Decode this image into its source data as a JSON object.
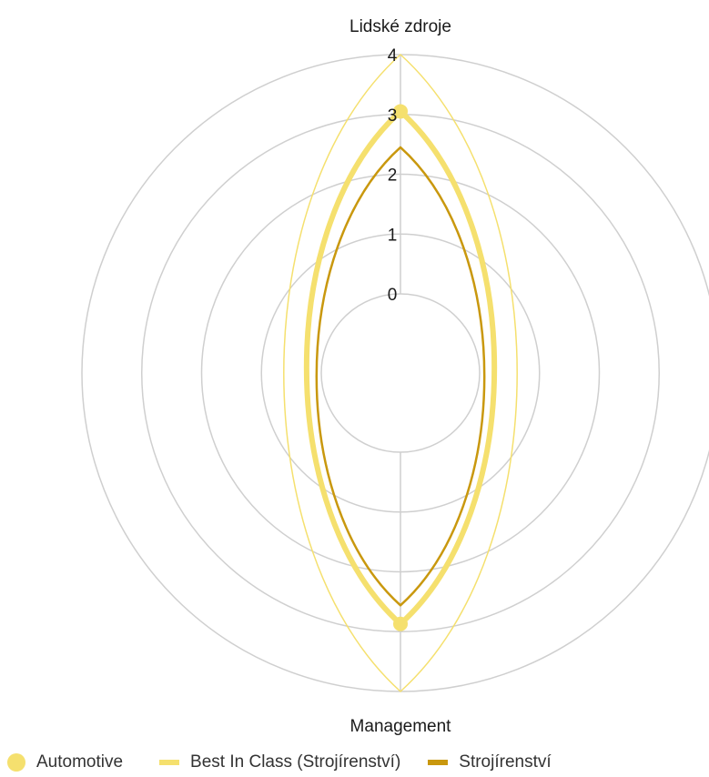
{
  "chart_data": {
    "type": "radar",
    "axes": [
      "Lidské zdroje",
      "Management"
    ],
    "ticks": [
      "0",
      "1",
      "2",
      "3",
      "4"
    ],
    "range": [
      0,
      4
    ],
    "series": [
      {
        "name": "Automotive",
        "values": [
          3.05,
          2.87
        ],
        "color": "#f5e06e",
        "marker": "dot",
        "line": "thick"
      },
      {
        "name": "Best In Class (Strojírenství)",
        "values": [
          4,
          4
        ],
        "color": "#f5e06e",
        "marker": "line",
        "line": "thin"
      },
      {
        "name": "Strojírenství",
        "values": [
          2.45,
          2.56
        ],
        "color": "#c9980e",
        "marker": "line",
        "line": "medium"
      }
    ],
    "grid": true,
    "legend_position": "bottom"
  }
}
